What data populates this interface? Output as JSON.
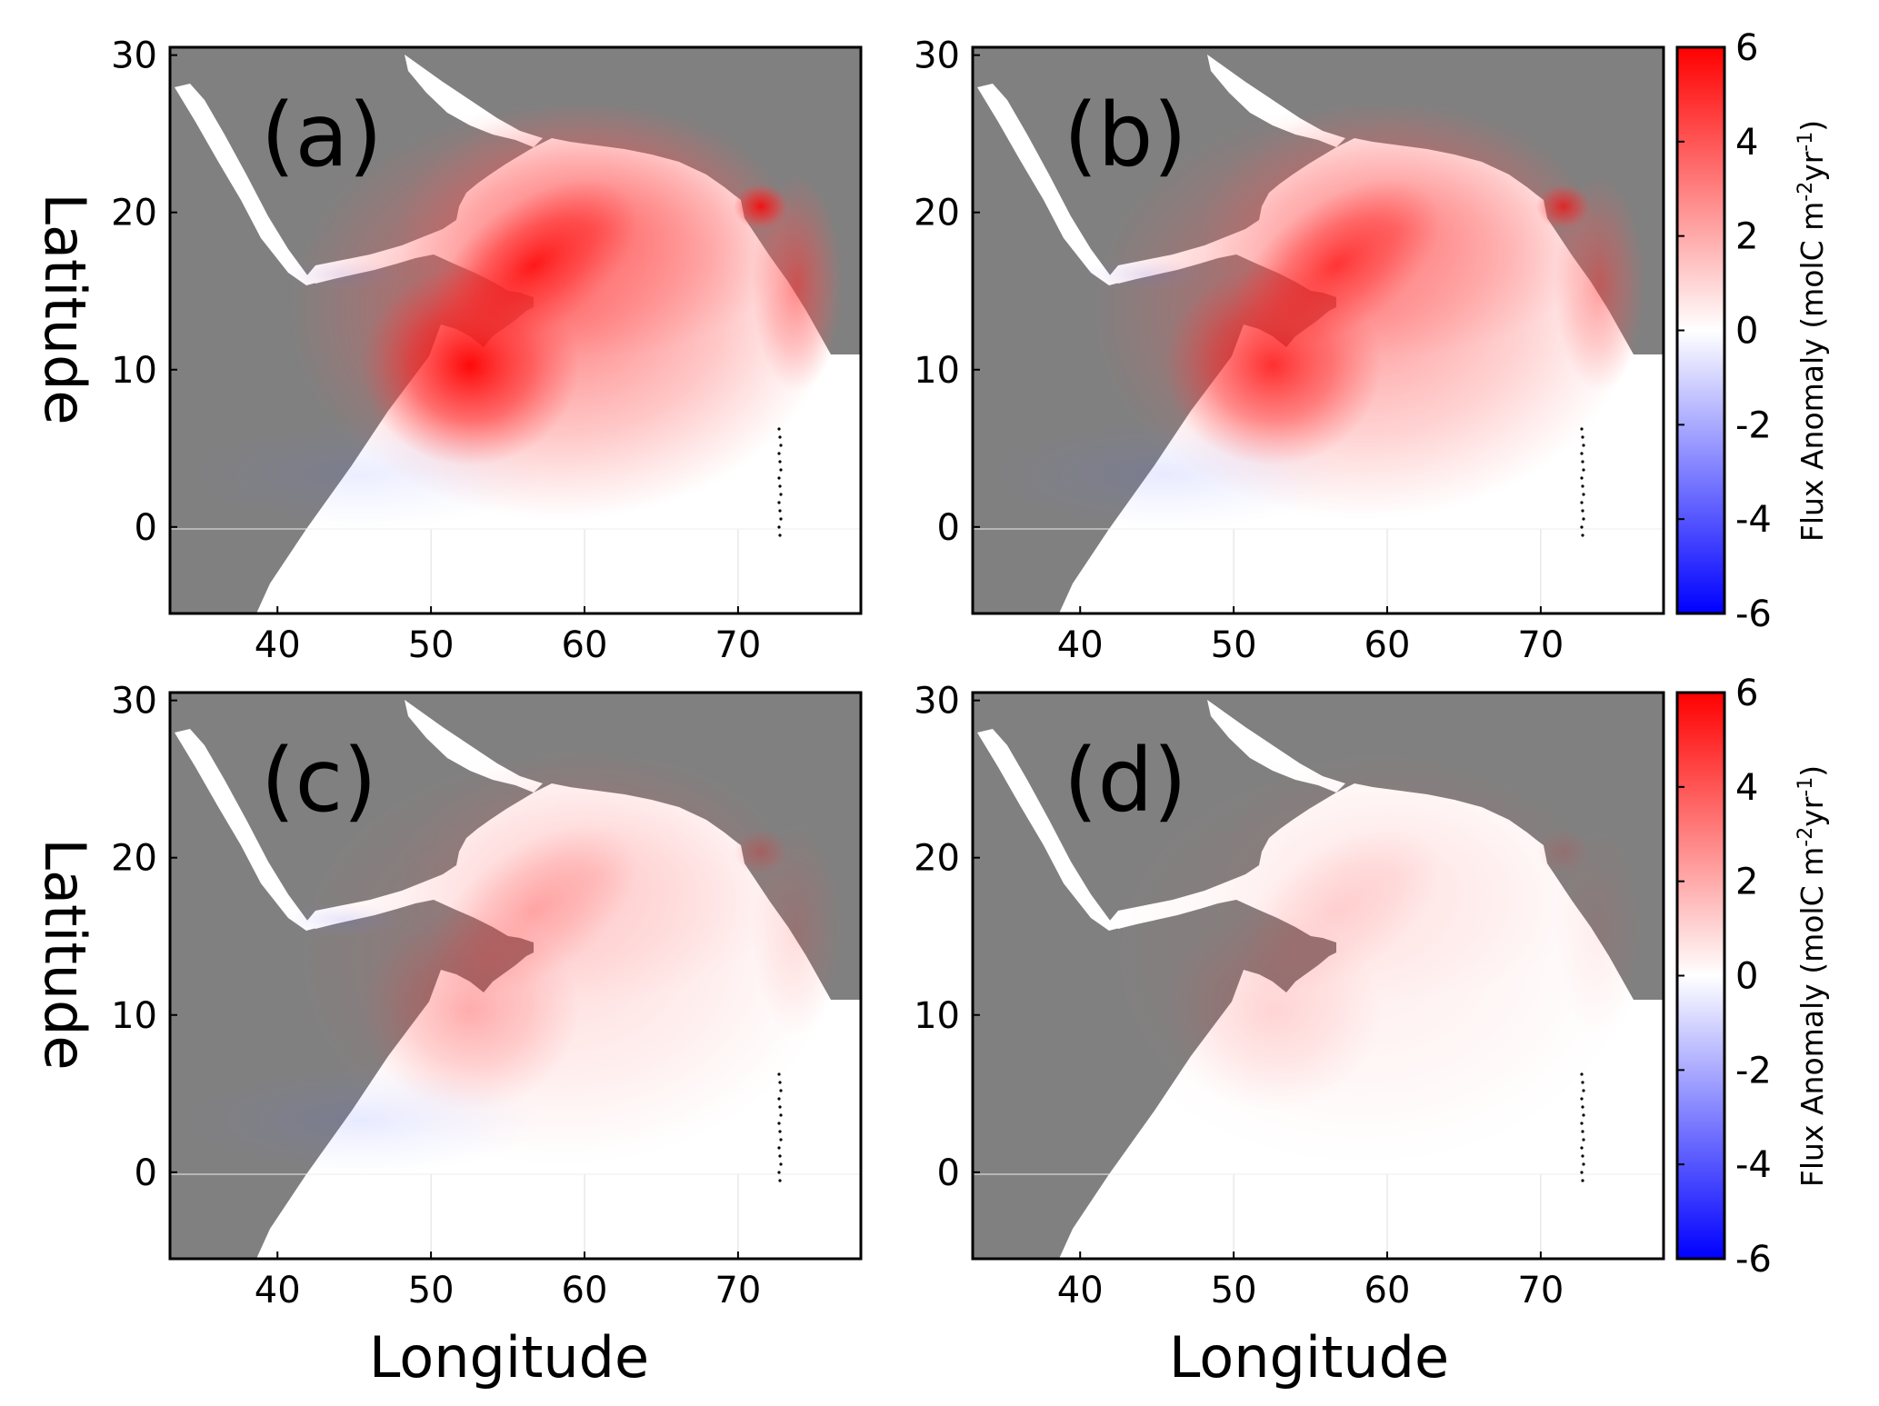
{
  "figure": {
    "panels": [
      {
        "label": "(a)",
        "intensity": 1.0,
        "negative": 0.1
      },
      {
        "label": "(b)",
        "intensity": 0.8,
        "negative": 0.12
      },
      {
        "label": "(c)",
        "intensity": 0.28,
        "negative": 0.12
      },
      {
        "label": "(d)",
        "intensity": 0.14,
        "negative": 0.0
      }
    ],
    "x_ticks": [
      "40",
      "50",
      "60",
      "70"
    ],
    "y_ticks": [
      "30",
      "20",
      "10",
      "0"
    ],
    "xlabel": "Longitude",
    "ylabel": "Latitude",
    "colorbar": {
      "ticks": [
        "6",
        "4",
        "2",
        "0",
        "-2",
        "-4",
        "-6"
      ],
      "title_main": "Flux Anomaly (molC m",
      "sup1": "-2",
      "mid": "yr",
      "sup2": "-1",
      "close": ")",
      "range": [
        -6,
        6
      ],
      "colors": {
        "high": "#ff0000",
        "mid": "#ffffff",
        "low": "#0000ff"
      }
    },
    "colors": {
      "land": "#808080",
      "ocean": "#ffffff",
      "frame": "#000000"
    },
    "map_extent": {
      "lon": [
        33,
        78
      ],
      "lat": [
        -5.5,
        30.5
      ]
    }
  }
}
